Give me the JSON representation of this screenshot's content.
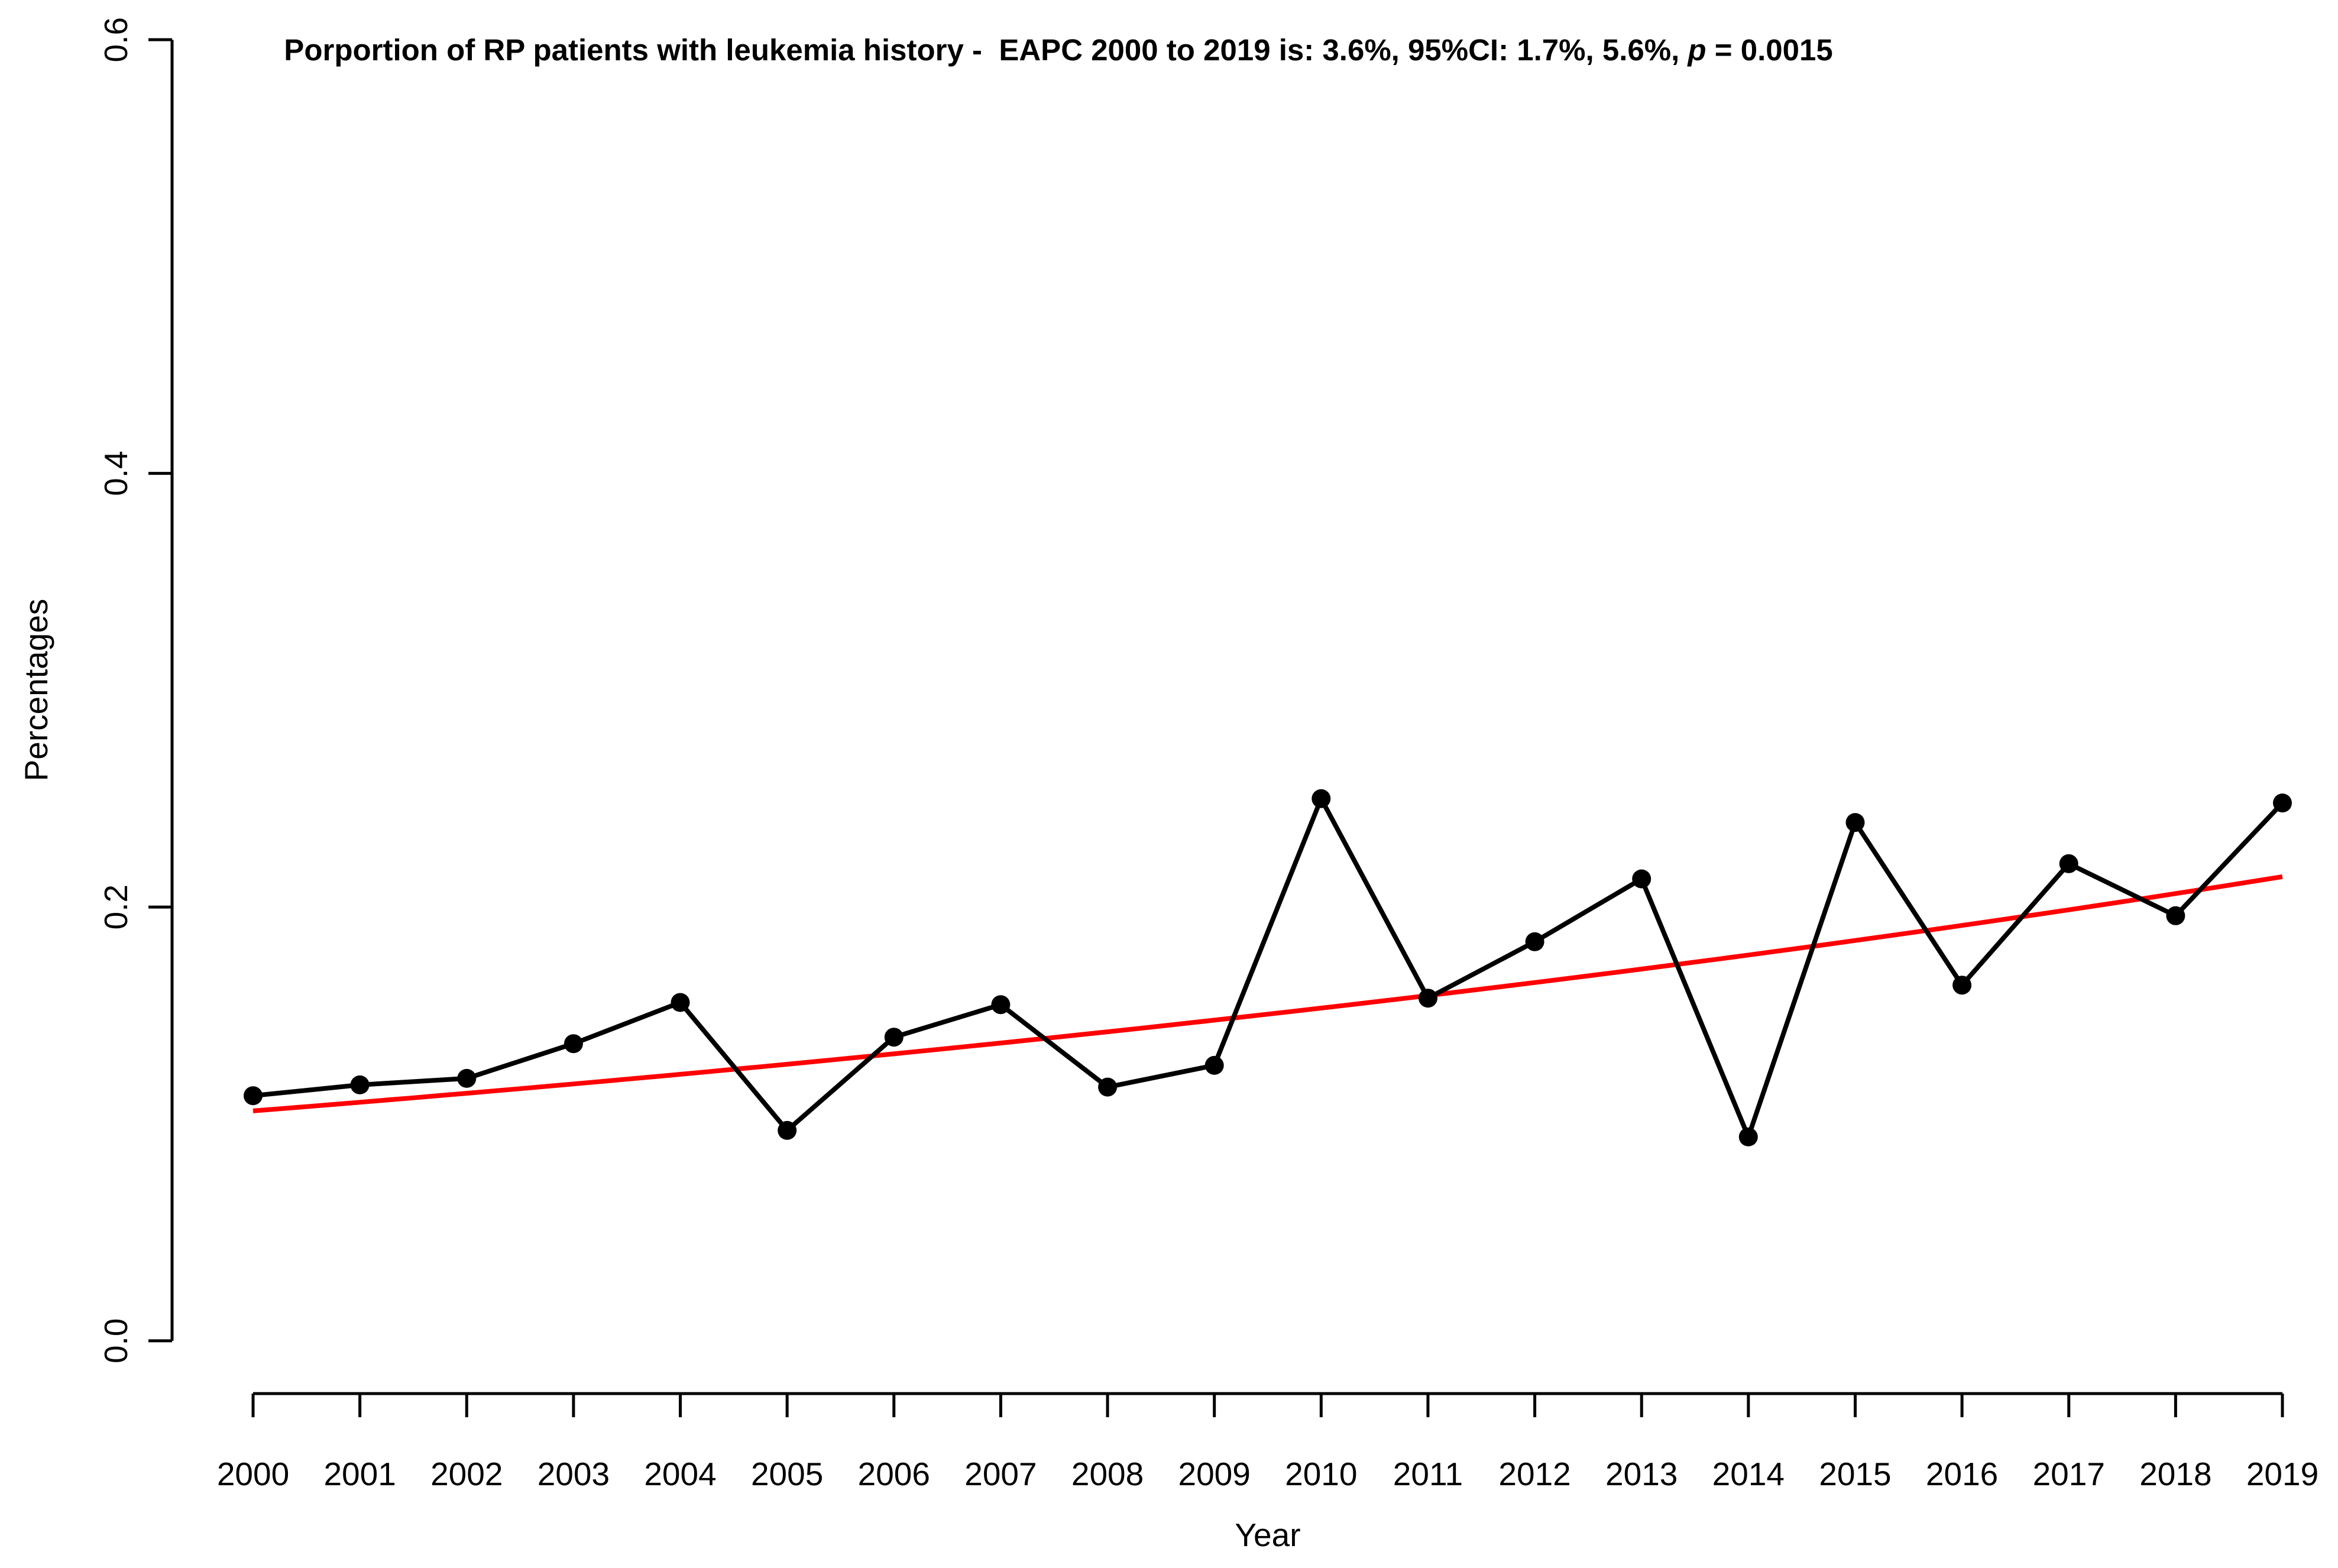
{
  "title": {
    "prefix": "Porportion of RP patients with leukemia history -  EAPC 2000 to 2019 is: 3.6%, 95%CI: 1.7%, 5.6%, ",
    "p_symbol": "p",
    "suffix": " = 0.0015"
  },
  "axes": {
    "x_label": "Year",
    "y_label": "Percentages",
    "y_tick_labels": [
      "0.0",
      "0.2",
      "0.4",
      "0.6"
    ],
    "y_tick_values": [
      0.0,
      0.2,
      0.4,
      0.6
    ]
  },
  "colors": {
    "series": "#000000",
    "trend": "#ff0000",
    "axis": "#000000",
    "background": "#ffffff"
  },
  "chart_data": {
    "type": "line",
    "title": "Porportion of RP patients with leukemia history -  EAPC 2000 to 2019 is: 3.6%, 95%CI: 1.7%, 5.6%, p = 0.0015",
    "xlabel": "Year",
    "ylabel": "Percentages",
    "xlim": [
      2000,
      2019
    ],
    "ylim": [
      0.0,
      0.6
    ],
    "grid": false,
    "legend": false,
    "x": [
      2000,
      2001,
      2002,
      2003,
      2004,
      2005,
      2006,
      2007,
      2008,
      2009,
      2010,
      2011,
      2012,
      2013,
      2014,
      2015,
      2016,
      2017,
      2018,
      2019
    ],
    "series": [
      {
        "name": "Proportion of RP patients with leukemia history",
        "color": "#000000",
        "marker": "filled-circle",
        "values": [
          0.113,
          0.118,
          0.121,
          0.137,
          0.156,
          0.097,
          0.14,
          0.155,
          0.117,
          0.127,
          0.25,
          0.158,
          0.184,
          0.213,
          0.094,
          0.239,
          0.164,
          0.22,
          0.196,
          0.248
        ]
      }
    ],
    "trend": {
      "name": "EAPC exponential fit",
      "color": "#ff0000",
      "type": "exponential",
      "start_value": 0.106,
      "end_value": 0.214,
      "eapc_percent": 3.6,
      "ci_low_percent": 1.7,
      "ci_high_percent": 5.6,
      "p_value": 0.0015
    }
  }
}
